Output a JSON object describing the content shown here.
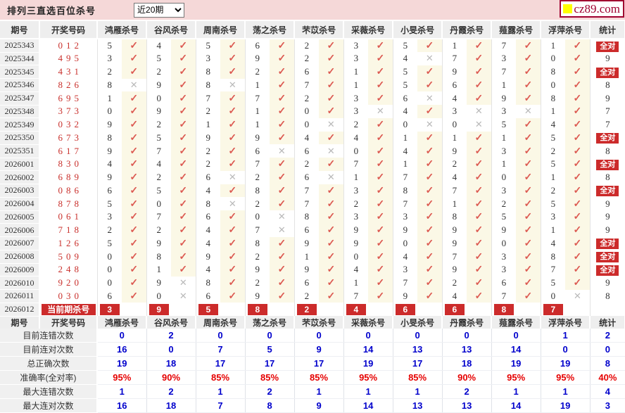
{
  "colors": {
    "bar_pink": "#f5d8d8",
    "badge_red": "#cc2b2b",
    "check_red": "#dc5a52",
    "cross_gray": "#b9b9b9",
    "draw_red": "#c9302c",
    "mark_bg_cream": "#fbf8e6",
    "stat_blue": "#0000cc",
    "stat_red": "#e60000",
    "logo_red": "#a00030",
    "logo_yellow": "#ffff00"
  },
  "icons": {
    "check": "✓",
    "cross": "✕"
  },
  "header_bar": {
    "title": "排列三直选百位杀号",
    "range_select": {
      "value": "近20期"
    },
    "logo_text": "cz89.com"
  },
  "table": {
    "column_headers": {
      "period": "期号",
      "draw": "开奖号码",
      "stat": "统计"
    },
    "experts": [
      "鸿雁杀号",
      "谷风杀号",
      "周南杀号",
      "荡之杀号",
      "芣苡杀号",
      "采薇杀号",
      "小旻杀号",
      "丹霞杀号",
      "薤露杀号",
      "浮萍杀号"
    ],
    "all_correct_label": "全对",
    "rows": [
      {
        "period": "2025343",
        "draw": "012",
        "kills": [
          5,
          4,
          5,
          6,
          2,
          3,
          5,
          1,
          7,
          1
        ],
        "ok": [
          1,
          1,
          1,
          1,
          1,
          1,
          1,
          1,
          1,
          1
        ],
        "stat": "全对"
      },
      {
        "period": "2025344",
        "draw": "495",
        "kills": [
          3,
          5,
          3,
          9,
          2,
          3,
          4,
          7,
          3,
          0
        ],
        "ok": [
          1,
          1,
          1,
          1,
          1,
          1,
          0,
          1,
          1,
          1
        ],
        "stat": "9"
      },
      {
        "period": "2025345",
        "draw": "431",
        "kills": [
          2,
          2,
          8,
          2,
          6,
          1,
          5,
          9,
          7,
          8
        ],
        "ok": [
          1,
          1,
          1,
          1,
          1,
          1,
          1,
          1,
          1,
          1
        ],
        "stat": "全对"
      },
      {
        "period": "2025346",
        "draw": "826",
        "kills": [
          8,
          9,
          8,
          1,
          7,
          1,
          5,
          6,
          1,
          0
        ],
        "ok": [
          0,
          1,
          0,
          1,
          1,
          1,
          1,
          1,
          1,
          1
        ],
        "stat": "8"
      },
      {
        "period": "2025347",
        "draw": "695",
        "kills": [
          1,
          0,
          7,
          7,
          2,
          3,
          6,
          4,
          9,
          8
        ],
        "ok": [
          1,
          1,
          1,
          1,
          1,
          1,
          0,
          1,
          1,
          1
        ],
        "stat": "9"
      },
      {
        "period": "2025348",
        "draw": "373",
        "kills": [
          0,
          9,
          2,
          1,
          0,
          3,
          4,
          3,
          3,
          1
        ],
        "ok": [
          1,
          1,
          1,
          1,
          1,
          0,
          1,
          0,
          0,
          1
        ],
        "stat": "7"
      },
      {
        "period": "2025349",
        "draw": "032",
        "kills": [
          9,
          2,
          1,
          1,
          0,
          2,
          0,
          0,
          5,
          4
        ],
        "ok": [
          1,
          1,
          1,
          1,
          0,
          1,
          0,
          0,
          1,
          1
        ],
        "stat": "7"
      },
      {
        "period": "2025350",
        "draw": "673",
        "kills": [
          8,
          5,
          9,
          9,
          4,
          4,
          1,
          1,
          1,
          5
        ],
        "ok": [
          1,
          1,
          1,
          1,
          1,
          1,
          1,
          1,
          1,
          1
        ],
        "stat": "全对"
      },
      {
        "period": "2025351",
        "draw": "617",
        "kills": [
          9,
          7,
          2,
          6,
          6,
          0,
          4,
          9,
          3,
          2
        ],
        "ok": [
          1,
          1,
          1,
          0,
          0,
          1,
          1,
          1,
          1,
          1
        ],
        "stat": "8"
      },
      {
        "period": "2026001",
        "draw": "830",
        "kills": [
          4,
          4,
          2,
          7,
          2,
          7,
          1,
          2,
          1,
          5
        ],
        "ok": [
          1,
          1,
          1,
          1,
          1,
          1,
          1,
          1,
          1,
          1
        ],
        "stat": "全对"
      },
      {
        "period": "2026002",
        "draw": "689",
        "kills": [
          9,
          2,
          6,
          2,
          6,
          1,
          7,
          4,
          0,
          1
        ],
        "ok": [
          1,
          1,
          0,
          1,
          0,
          1,
          1,
          1,
          1,
          1
        ],
        "stat": "8"
      },
      {
        "period": "2026003",
        "draw": "086",
        "kills": [
          6,
          5,
          4,
          8,
          7,
          3,
          8,
          7,
          3,
          2
        ],
        "ok": [
          1,
          1,
          1,
          1,
          1,
          1,
          1,
          1,
          1,
          1
        ],
        "stat": "全对"
      },
      {
        "period": "2026004",
        "draw": "878",
        "kills": [
          5,
          0,
          8,
          2,
          7,
          2,
          7,
          1,
          2,
          5
        ],
        "ok": [
          1,
          1,
          0,
          1,
          1,
          1,
          1,
          1,
          1,
          1
        ],
        "stat": "9"
      },
      {
        "period": "2026005",
        "draw": "061",
        "kills": [
          3,
          7,
          6,
          0,
          8,
          3,
          3,
          8,
          5,
          3
        ],
        "ok": [
          1,
          1,
          1,
          0,
          1,
          1,
          1,
          1,
          1,
          1
        ],
        "stat": "9"
      },
      {
        "period": "2026006",
        "draw": "718",
        "kills": [
          2,
          2,
          4,
          7,
          6,
          9,
          9,
          9,
          9,
          1
        ],
        "ok": [
          1,
          1,
          1,
          0,
          1,
          1,
          1,
          1,
          1,
          1
        ],
        "stat": "9"
      },
      {
        "period": "2026007",
        "draw": "126",
        "kills": [
          5,
          9,
          4,
          8,
          9,
          9,
          0,
          9,
          0,
          4
        ],
        "ok": [
          1,
          1,
          1,
          1,
          1,
          1,
          1,
          1,
          1,
          1
        ],
        "stat": "全对"
      },
      {
        "period": "2026008",
        "draw": "509",
        "kills": [
          0,
          8,
          9,
          2,
          1,
          0,
          4,
          7,
          3,
          8
        ],
        "ok": [
          1,
          1,
          1,
          1,
          1,
          1,
          1,
          1,
          1,
          1
        ],
        "stat": "全对"
      },
      {
        "period": "2026009",
        "draw": "248",
        "kills": [
          0,
          1,
          4,
          9,
          9,
          4,
          3,
          9,
          3,
          7
        ],
        "ok": [
          1,
          1,
          1,
          1,
          1,
          1,
          1,
          1,
          1,
          1
        ],
        "stat": "全对"
      },
      {
        "period": "2026010",
        "draw": "920",
        "kills": [
          0,
          9,
          8,
          2,
          6,
          1,
          7,
          2,
          6,
          5
        ],
        "ok": [
          1,
          0,
          1,
          1,
          1,
          1,
          1,
          1,
          1,
          1
        ],
        "stat": "9"
      },
      {
        "period": "2026011",
        "draw": "030",
        "kills": [
          6,
          0,
          6,
          9,
          2,
          7,
          9,
          4,
          7,
          0
        ],
        "ok": [
          1,
          0,
          1,
          1,
          1,
          1,
          1,
          1,
          1,
          0
        ],
        "stat": "8"
      }
    ],
    "current_row": {
      "period": "2026012",
      "label": "当前期杀号",
      "kills": [
        3,
        9,
        5,
        8,
        2,
        4,
        6,
        6,
        8,
        7
      ],
      "stat": ""
    }
  },
  "stats": {
    "rows": [
      {
        "label": "目前连错次数",
        "values": [
          "0",
          "2",
          "0",
          "0",
          "0",
          "0",
          "0",
          "0",
          "0",
          "1"
        ],
        "total": "2",
        "style": "blue"
      },
      {
        "label": "目前连对次数",
        "values": [
          "16",
          "0",
          "7",
          "5",
          "9",
          "14",
          "13",
          "13",
          "14",
          "0"
        ],
        "total": "0",
        "style": "blue"
      },
      {
        "label": "总正确次数",
        "values": [
          "19",
          "18",
          "17",
          "17",
          "17",
          "19",
          "17",
          "18",
          "19",
          "19"
        ],
        "total": "8",
        "style": "blue"
      },
      {
        "label": "准确率(全对率)",
        "values": [
          "95%",
          "90%",
          "85%",
          "85%",
          "85%",
          "95%",
          "85%",
          "90%",
          "95%",
          "95%"
        ],
        "total": "40%",
        "style": "red"
      },
      {
        "label": "最大连错次数",
        "values": [
          "1",
          "2",
          "1",
          "2",
          "1",
          "1",
          "1",
          "2",
          "1",
          "1"
        ],
        "total": "4",
        "style": "blue"
      },
      {
        "label": "最大连对次数",
        "values": [
          "16",
          "18",
          "7",
          "8",
          "9",
          "14",
          "13",
          "13",
          "14",
          "19"
        ],
        "total": "3",
        "style": "blue"
      }
    ]
  }
}
